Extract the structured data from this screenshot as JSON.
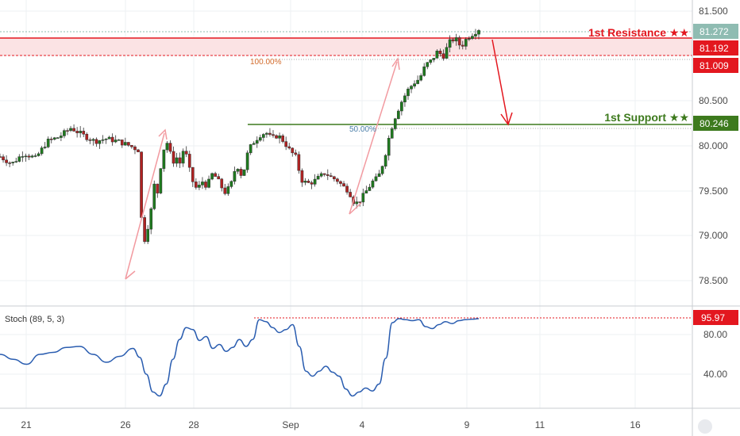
{
  "chart_data": [
    {
      "type": "candlestick",
      "panel": "price",
      "x_ticks": [
        "21",
        "26",
        "28",
        "Sep",
        "4",
        "9",
        "11",
        "16"
      ],
      "y_ticks": [
        "81.500",
        "81.000",
        "80.500",
        "80.000",
        "79.500",
        "79.000",
        "78.500"
      ],
      "ylim": [
        78.25,
        81.6
      ],
      "price_labels": {
        "current": "81.272",
        "resistance_top": "81.192",
        "resistance_bottom": "81.009",
        "support": "80.246"
      },
      "annotations": {
        "resistance_label": "1st Resistance ★★",
        "support_label": "1st Support ★★",
        "fib_100": "100.00%",
        "fib_50": "50.00%"
      },
      "levels": {
        "current": 81.272,
        "resistance_top": 81.192,
        "resistance_bottom": 81.009,
        "support": 80.246,
        "fib_100": 80.98,
        "fib_50": 80.2
      },
      "colors": {
        "bull": "#1e7a1e",
        "bear": "#b22222",
        "resistance": "#e3171f",
        "support": "#3d7a1d",
        "current": "#8fbcb2",
        "fib100": "#d26a2a",
        "fib50": "#4a7ea8",
        "arrow": "#f29aa0"
      },
      "close_path": [
        [
          0,
          79.88
        ],
        [
          2,
          79.8
        ],
        [
          4,
          79.92
        ],
        [
          6,
          79.86
        ],
        [
          8,
          80.05
        ],
        [
          10,
          80.1
        ],
        [
          12,
          80.2
        ],
        [
          14,
          80.12
        ],
        [
          16,
          80.05
        ],
        [
          18,
          80.08
        ],
        [
          20,
          80.05
        ],
        [
          22,
          80.0
        ],
        [
          23.5,
          79.95
        ],
        [
          24,
          79.05
        ],
        [
          24.5,
          78.95
        ],
        [
          25.5,
          79.25
        ],
        [
          26,
          79.6
        ],
        [
          26.5,
          79.4
        ],
        [
          27,
          79.7
        ],
        [
          27.5,
          79.9
        ],
        [
          28,
          80.05
        ],
        [
          28.5,
          80.02
        ],
        [
          29,
          79.85
        ],
        [
          29.5,
          79.82
        ],
        [
          30,
          79.88
        ],
        [
          30.5,
          79.8
        ],
        [
          31,
          79.95
        ],
        [
          31.5,
          79.9
        ],
        [
          32,
          79.75
        ],
        [
          32.5,
          79.62
        ],
        [
          33,
          79.55
        ],
        [
          33.5,
          79.5
        ],
        [
          34,
          79.62
        ],
        [
          35,
          79.55
        ],
        [
          36,
          79.7
        ],
        [
          37,
          79.6
        ],
        [
          38,
          79.48
        ],
        [
          39,
          79.55
        ],
        [
          40,
          79.8
        ],
        [
          41,
          79.65
        ],
        [
          42,
          79.95
        ],
        [
          43,
          80.05
        ],
        [
          44,
          80.12
        ],
        [
          45,
          80.15
        ],
        [
          46,
          80.08
        ],
        [
          47,
          80.12
        ],
        [
          48,
          80.05
        ],
        [
          49,
          79.95
        ],
        [
          50,
          79.88
        ],
        [
          51,
          79.62
        ],
        [
          52,
          79.58
        ],
        [
          53,
          79.6
        ],
        [
          54,
          79.65
        ],
        [
          55,
          79.7
        ],
        [
          56,
          79.65
        ],
        [
          57,
          79.62
        ],
        [
          58,
          79.55
        ],
        [
          59,
          79.5
        ],
        [
          60,
          79.35
        ],
        [
          61,
          79.4
        ],
        [
          62,
          79.5
        ],
        [
          63,
          79.6
        ],
        [
          64,
          79.65
        ],
        [
          65,
          79.85
        ],
        [
          66,
          80.15
        ],
        [
          67,
          80.35
        ],
        [
          68,
          80.5
        ],
        [
          69,
          80.62
        ],
        [
          70,
          80.7
        ],
        [
          71,
          80.75
        ],
        [
          72,
          80.9
        ],
        [
          73,
          80.95
        ],
        [
          74,
          81.05
        ],
        [
          75,
          81.0
        ],
        [
          76,
          81.15
        ],
        [
          77,
          81.2
        ],
        [
          78,
          81.1
        ],
        [
          79,
          81.2
        ],
        [
          80,
          81.25
        ],
        [
          81,
          81.3
        ]
      ]
    },
    {
      "type": "line",
      "panel": "stochastic",
      "title": "Stoch (89, 5, 3)",
      "y_ticks": [
        "80.00",
        "40.00"
      ],
      "ylim": [
        5,
        110
      ],
      "current_value": "95.97",
      "current": 95.97,
      "colors": {
        "line": "#2a5db0",
        "level": "#e3171f"
      },
      "values": [
        [
          0,
          60
        ],
        [
          2,
          55
        ],
        [
          4,
          50
        ],
        [
          6,
          60
        ],
        [
          8,
          62
        ],
        [
          10,
          67
        ],
        [
          12,
          68
        ],
        [
          14,
          60
        ],
        [
          16,
          52
        ],
        [
          18,
          58
        ],
        [
          20,
          66
        ],
        [
          21,
          57
        ],
        [
          22,
          40
        ],
        [
          23,
          22
        ],
        [
          24,
          18
        ],
        [
          25,
          30
        ],
        [
          26,
          55
        ],
        [
          27,
          75
        ],
        [
          28,
          87
        ],
        [
          29,
          85
        ],
        [
          30,
          74
        ],
        [
          31,
          78
        ],
        [
          32,
          66
        ],
        [
          33,
          70
        ],
        [
          34,
          63
        ],
        [
          35,
          67
        ],
        [
          36,
          75
        ],
        [
          37,
          68
        ],
        [
          38,
          75
        ],
        [
          39,
          95
        ],
        [
          40,
          93
        ],
        [
          41,
          87
        ],
        [
          42,
          82
        ],
        [
          43,
          85
        ],
        [
          44,
          90
        ],
        [
          45,
          68
        ],
        [
          46,
          43
        ],
        [
          47,
          38
        ],
        [
          48,
          43
        ],
        [
          49,
          48
        ],
        [
          50,
          42
        ],
        [
          51,
          38
        ],
        [
          52,
          25
        ],
        [
          53,
          18
        ],
        [
          54,
          22
        ],
        [
          55,
          26
        ],
        [
          56,
          23
        ],
        [
          57,
          30
        ],
        [
          58,
          56
        ],
        [
          59,
          92
        ],
        [
          60,
          96
        ],
        [
          61,
          95
        ],
        [
          62,
          94
        ],
        [
          63,
          95
        ],
        [
          64,
          88
        ],
        [
          65,
          86
        ],
        [
          66,
          90
        ],
        [
          67,
          93
        ],
        [
          68,
          91
        ],
        [
          69,
          94
        ],
        [
          70,
          95
        ],
        [
          71,
          95.5
        ],
        [
          72,
          95.97
        ]
      ]
    }
  ]
}
